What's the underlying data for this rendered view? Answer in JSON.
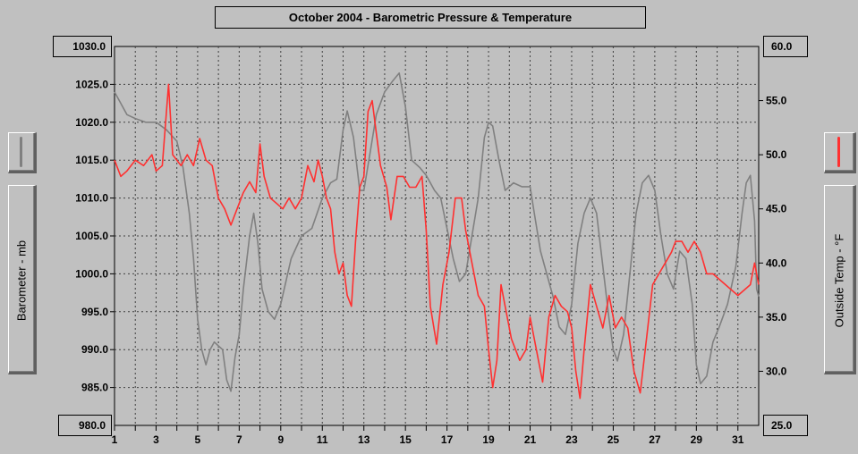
{
  "chart_data": {
    "type": "line",
    "title": "October 2004 - Barometric Pressure & Temperature",
    "x": {
      "min": 1,
      "max": 32,
      "ticks": [
        "1",
        "3",
        "5",
        "7",
        "9",
        "11",
        "13",
        "15",
        "17",
        "19",
        "21",
        "23",
        "25",
        "27",
        "29",
        "31"
      ]
    },
    "y_left": {
      "label": "Barometer - mb",
      "min": 980.0,
      "max": 1030.0,
      "ticks": [
        "980.0",
        "985.0",
        "990.0",
        "995.0",
        "1000.0",
        "1005.0",
        "1010.0",
        "1015.0",
        "1020.0",
        "1025.0",
        "1030.0"
      ],
      "top_value": "1030.0",
      "bottom_value": "980.0"
    },
    "y_right": {
      "label": "Outside Temp - °F",
      "min": 25.0,
      "max": 60.0,
      "ticks": [
        "25.0",
        "30.0",
        "35.0",
        "40.0",
        "45.0",
        "50.0",
        "55.0",
        "60.0"
      ],
      "top_value": "60.0",
      "bottom_value": "25.0"
    },
    "grid": true,
    "series": [
      {
        "axis": "left",
        "color": "#808080",
        "points": [
          [
            1,
            1024
          ],
          [
            1.3,
            1022.5
          ],
          [
            1.6,
            1021
          ],
          [
            2,
            1020.5
          ],
          [
            2.5,
            1020
          ],
          [
            3,
            1020
          ],
          [
            3.5,
            1019
          ],
          [
            4,
            1017.5
          ],
          [
            4.3,
            1014
          ],
          [
            4.6,
            1008
          ],
          [
            4.8,
            1002
          ],
          [
            5,
            994
          ],
          [
            5.2,
            990
          ],
          [
            5.4,
            988
          ],
          [
            5.6,
            990
          ],
          [
            5.8,
            991
          ],
          [
            6,
            990.5
          ],
          [
            6.2,
            990
          ],
          [
            6.4,
            986
          ],
          [
            6.6,
            984.5
          ],
          [
            6.8,
            989
          ],
          [
            7,
            992
          ],
          [
            7.2,
            998
          ],
          [
            7.5,
            1005
          ],
          [
            7.7,
            1008
          ],
          [
            7.9,
            1004
          ],
          [
            8.1,
            998
          ],
          [
            8.4,
            995
          ],
          [
            8.7,
            994
          ],
          [
            9,
            996
          ],
          [
            9.5,
            1002
          ],
          [
            10,
            1005
          ],
          [
            10.5,
            1006
          ],
          [
            11,
            1010
          ],
          [
            11.4,
            1012
          ],
          [
            11.7,
            1012.5
          ],
          [
            12,
            1019
          ],
          [
            12.2,
            1021.5
          ],
          [
            12.5,
            1018
          ],
          [
            12.8,
            1011
          ],
          [
            13,
            1011
          ],
          [
            13.3,
            1016
          ],
          [
            13.6,
            1021
          ],
          [
            14,
            1024
          ],
          [
            14.4,
            1025.5
          ],
          [
            14.7,
            1026.5
          ],
          [
            15,
            1022
          ],
          [
            15.3,
            1015
          ],
          [
            15.7,
            1014
          ],
          [
            16,
            1013
          ],
          [
            16.4,
            1011
          ],
          [
            16.7,
            1010
          ],
          [
            17,
            1006
          ],
          [
            17.3,
            1002
          ],
          [
            17.6,
            999
          ],
          [
            17.9,
            1000
          ],
          [
            18.2,
            1005
          ],
          [
            18.5,
            1010
          ],
          [
            18.8,
            1018
          ],
          [
            19,
            1020
          ],
          [
            19.2,
            1019.5
          ],
          [
            19.5,
            1015
          ],
          [
            19.8,
            1011
          ],
          [
            20.2,
            1012
          ],
          [
            20.6,
            1011.5
          ],
          [
            21,
            1011.5
          ],
          [
            21.2,
            1008
          ],
          [
            21.5,
            1003
          ],
          [
            21.8,
            1000
          ],
          [
            22.1,
            997
          ],
          [
            22.4,
            993
          ],
          [
            22.7,
            992
          ],
          [
            23,
            996
          ],
          [
            23.3,
            1004
          ],
          [
            23.6,
            1008
          ],
          [
            23.9,
            1010
          ],
          [
            24.2,
            1008
          ],
          [
            24.5,
            1001
          ],
          [
            24.8,
            994
          ],
          [
            25,
            990
          ],
          [
            25.2,
            988.5
          ],
          [
            25.5,
            992
          ],
          [
            25.8,
            1000
          ],
          [
            26.1,
            1008
          ],
          [
            26.4,
            1012
          ],
          [
            26.7,
            1013
          ],
          [
            27,
            1011
          ],
          [
            27.3,
            1005
          ],
          [
            27.6,
            1000
          ],
          [
            27.9,
            998
          ],
          [
            28.2,
            1003
          ],
          [
            28.5,
            1002
          ],
          [
            28.8,
            996
          ],
          [
            29,
            988
          ],
          [
            29.2,
            985.5
          ],
          [
            29.5,
            986.5
          ],
          [
            29.8,
            991
          ],
          [
            30.1,
            993
          ],
          [
            30.5,
            996
          ],
          [
            30.9,
            1001
          ],
          [
            31.2,
            1008
          ],
          [
            31.4,
            1012
          ],
          [
            31.6,
            1013
          ],
          [
            31.8,
            1007
          ],
          [
            31.9,
            998
          ],
          [
            32,
            997
          ]
        ]
      },
      {
        "axis": "right",
        "color": "#ff3030",
        "points": [
          [
            1,
            49.5
          ],
          [
            1.3,
            48
          ],
          [
            1.6,
            48.5
          ],
          [
            2,
            49.5
          ],
          [
            2.4,
            49
          ],
          [
            2.8,
            50
          ],
          [
            3,
            48.5
          ],
          [
            3.3,
            49
          ],
          [
            3.6,
            56.5
          ],
          [
            3.8,
            50
          ],
          [
            4.2,
            49
          ],
          [
            4.5,
            50
          ],
          [
            4.8,
            49
          ],
          [
            5.1,
            51.5
          ],
          [
            5.4,
            49.5
          ],
          [
            5.7,
            49
          ],
          [
            6,
            46
          ],
          [
            6.3,
            45
          ],
          [
            6.6,
            43.5
          ],
          [
            6.9,
            45
          ],
          [
            7.2,
            46.5
          ],
          [
            7.5,
            47.5
          ],
          [
            7.8,
            46.5
          ],
          [
            8,
            51
          ],
          [
            8.2,
            48
          ],
          [
            8.5,
            46
          ],
          [
            8.8,
            45.5
          ],
          [
            9.1,
            45
          ],
          [
            9.4,
            46
          ],
          [
            9.7,
            45
          ],
          [
            10,
            46
          ],
          [
            10.3,
            49
          ],
          [
            10.6,
            47.5
          ],
          [
            10.8,
            49.5
          ],
          [
            11,
            48
          ],
          [
            11.2,
            46
          ],
          [
            11.4,
            45
          ],
          [
            11.6,
            41
          ],
          [
            11.8,
            39
          ],
          [
            12,
            40
          ],
          [
            12.2,
            37
          ],
          [
            12.4,
            36
          ],
          [
            12.6,
            42
          ],
          [
            12.8,
            47
          ],
          [
            13,
            48
          ],
          [
            13.2,
            54
          ],
          [
            13.4,
            55
          ],
          [
            13.6,
            52
          ],
          [
            13.8,
            49
          ],
          [
            14.1,
            47
          ],
          [
            14.3,
            44
          ],
          [
            14.6,
            48
          ],
          [
            14.9,
            48
          ],
          [
            15.2,
            47
          ],
          [
            15.5,
            47
          ],
          [
            15.8,
            48
          ],
          [
            16,
            43
          ],
          [
            16.2,
            36
          ],
          [
            16.5,
            32.5
          ],
          [
            16.8,
            38
          ],
          [
            17.1,
            41
          ],
          [
            17.4,
            46
          ],
          [
            17.7,
            46
          ],
          [
            17.9,
            43
          ],
          [
            18.2,
            40
          ],
          [
            18.5,
            37
          ],
          [
            18.8,
            36
          ],
          [
            19,
            32
          ],
          [
            19.2,
            28.5
          ],
          [
            19.4,
            31
          ],
          [
            19.6,
            38
          ],
          [
            19.8,
            36
          ],
          [
            20.1,
            33
          ],
          [
            20.5,
            31
          ],
          [
            20.8,
            32
          ],
          [
            21,
            35
          ],
          [
            21.3,
            32
          ],
          [
            21.6,
            29
          ],
          [
            21.9,
            35
          ],
          [
            22.2,
            37
          ],
          [
            22.5,
            36
          ],
          [
            22.8,
            35.5
          ],
          [
            23,
            34
          ],
          [
            23.2,
            30
          ],
          [
            23.4,
            27.5
          ],
          [
            23.6,
            32
          ],
          [
            23.9,
            38
          ],
          [
            24.2,
            36
          ],
          [
            24.5,
            34
          ],
          [
            24.8,
            37
          ],
          [
            25.1,
            34
          ],
          [
            25.4,
            35
          ],
          [
            25.7,
            34
          ],
          [
            26,
            30
          ],
          [
            26.3,
            28
          ],
          [
            26.6,
            33
          ],
          [
            26.9,
            38
          ],
          [
            27.2,
            39
          ],
          [
            27.5,
            40
          ],
          [
            27.8,
            41
          ],
          [
            28,
            42
          ],
          [
            28.3,
            42
          ],
          [
            28.6,
            41
          ],
          [
            28.9,
            42
          ],
          [
            29.2,
            41
          ],
          [
            29.5,
            39
          ],
          [
            29.8,
            39
          ],
          [
            30.1,
            38.5
          ],
          [
            30.4,
            38
          ],
          [
            30.7,
            37.5
          ],
          [
            31,
            37
          ],
          [
            31.3,
            37.5
          ],
          [
            31.6,
            38
          ],
          [
            31.8,
            40
          ],
          [
            32,
            38
          ]
        ]
      }
    ]
  }
}
